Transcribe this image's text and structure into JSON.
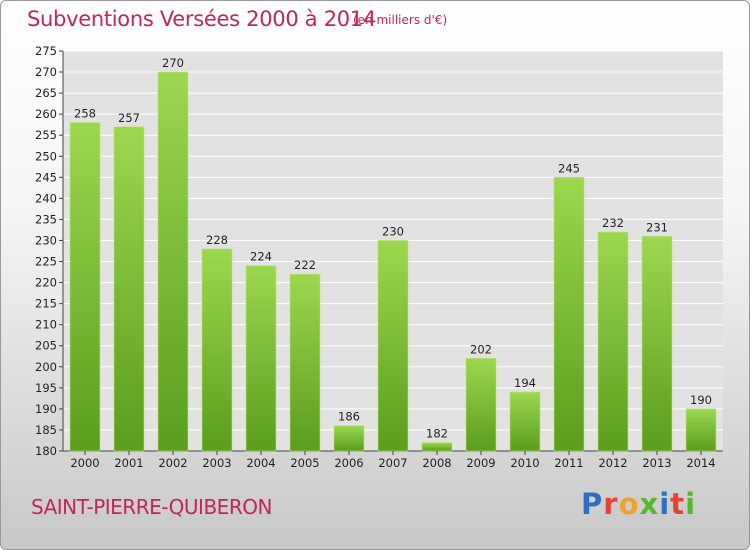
{
  "header": {
    "title": "Subventions Versées 2000 à 2014",
    "subtitle": "(en milliers d'€)"
  },
  "footer": {
    "place": "SAINT-PIERRE-QUIBERON",
    "logo": "Proxiti",
    "logo_colors": [
      "#2e6fc4",
      "#e8403a",
      "#f2a12a",
      "#57b82f",
      "#2e6fc4",
      "#e8403a",
      "#57b82f"
    ]
  },
  "chart_data": {
    "type": "bar",
    "title": "Subventions Versées 2000 à 2014",
    "categories": [
      "2000",
      "2001",
      "2002",
      "2003",
      "2004",
      "2005",
      "2006",
      "2007",
      "2008",
      "2009",
      "2010",
      "2011",
      "2012",
      "2013",
      "2014"
    ],
    "values": [
      258,
      257,
      270,
      228,
      224,
      222,
      186,
      230,
      182,
      202,
      194,
      245,
      232,
      231,
      190
    ],
    "ylim": [
      180,
      275
    ],
    "yticks": [
      180,
      185,
      190,
      195,
      200,
      205,
      210,
      215,
      220,
      225,
      230,
      235,
      240,
      245,
      250,
      255,
      260,
      265,
      270,
      275
    ],
    "grid": true,
    "bar_color": "#7cc23a",
    "grid_color": "#ffffff",
    "plot_bg": "#e2e2e2"
  }
}
